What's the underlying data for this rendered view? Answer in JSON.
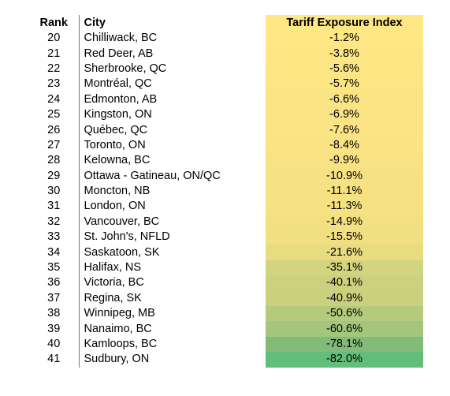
{
  "table": {
    "headers": {
      "rank": "Rank",
      "city": "City",
      "index": "Tariff Exposure Index"
    },
    "header_colors": {
      "index_bg": "#ffe784"
    },
    "rows": [
      {
        "rank": "20",
        "city": "Chilliwack, BC",
        "index": "-1.2%",
        "color": "#ffe784"
      },
      {
        "rank": "21",
        "city": "Red Deer, AB",
        "index": "-3.8%",
        "color": "#fde683"
      },
      {
        "rank": "22",
        "city": "Sherbrooke, QC",
        "index": "-5.6%",
        "color": "#fce583"
      },
      {
        "rank": "23",
        "city": "Montréal, QC",
        "index": "-5.7%",
        "color": "#fce583"
      },
      {
        "rank": "24",
        "city": "Edmonton, AB",
        "index": "-6.6%",
        "color": "#fbe483"
      },
      {
        "rank": "25",
        "city": "Kingston, ON",
        "index": "-6.9%",
        "color": "#fbe483"
      },
      {
        "rank": "26",
        "city": "Québec, QC",
        "index": "-7.6%",
        "color": "#fae483"
      },
      {
        "rank": "27",
        "city": "Toronto, ON",
        "index": "-8.4%",
        "color": "#f9e383"
      },
      {
        "rank": "28",
        "city": "Kelowna, BC",
        "index": "-9.9%",
        "color": "#f8e283"
      },
      {
        "rank": "29",
        "city": "Ottawa - Gatineau, ON/QC",
        "index": "-10.9%",
        "color": "#f7e283"
      },
      {
        "rank": "30",
        "city": "Moncton, NB",
        "index": "-11.1%",
        "color": "#f7e283"
      },
      {
        "rank": "31",
        "city": "London, ON",
        "index": "-11.3%",
        "color": "#f6e283"
      },
      {
        "rank": "32",
        "city": "Vancouver, BC",
        "index": "-14.9%",
        "color": "#f2e082"
      },
      {
        "rank": "33",
        "city": "St. John's, NFLD",
        "index": "-15.5%",
        "color": "#f1df82"
      },
      {
        "rank": "34",
        "city": "Saskatoon, SK",
        "index": "-21.6%",
        "color": "#e8dc81"
      },
      {
        "rank": "35",
        "city": "Halifax, NS",
        "index": "-35.1%",
        "color": "#d3d47f"
      },
      {
        "rank": "36",
        "city": "Victoria, BC",
        "index": "-40.1%",
        "color": "#cbd17e"
      },
      {
        "rank": "37",
        "city": "Regina, SK",
        "index": "-40.9%",
        "color": "#cad07e"
      },
      {
        "rank": "38",
        "city": "Winnipeg, MB",
        "index": "-50.6%",
        "color": "#b5ca7d"
      },
      {
        "rank": "39",
        "city": "Nanaimo, BC",
        "index": "-60.6%",
        "color": "#a4c57c"
      },
      {
        "rank": "40",
        "city": "Kamloops, BC",
        "index": "-78.1%",
        "color": "#82bb79"
      },
      {
        "rank": "41",
        "city": "Sudbury, ON",
        "index": "-82.0%",
        "color": "#63be7b"
      }
    ]
  }
}
